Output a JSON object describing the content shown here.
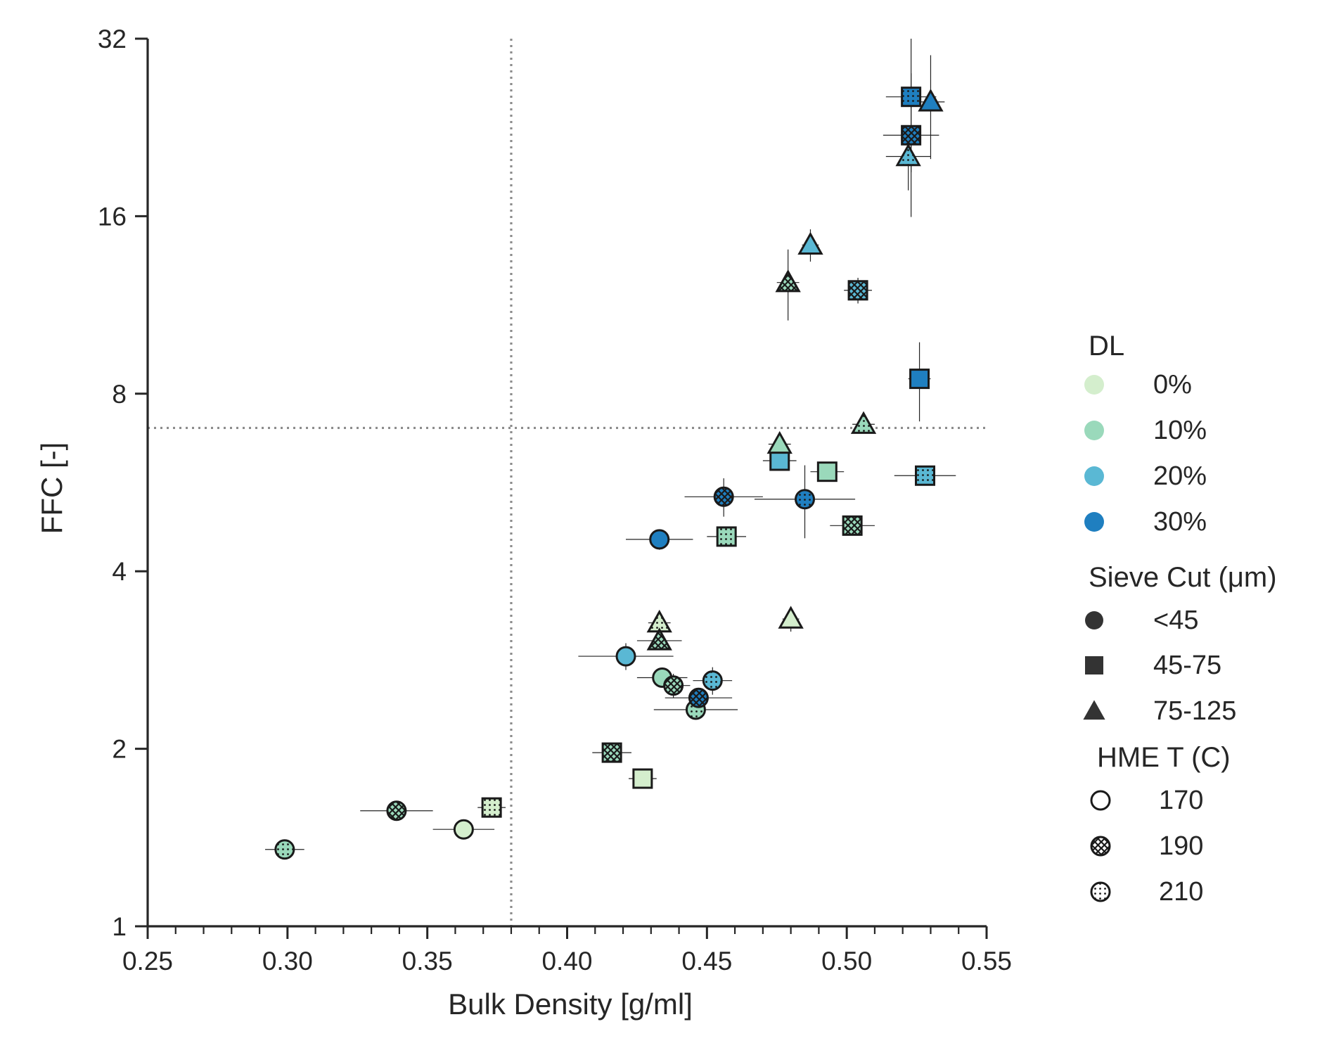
{
  "chart_data": {
    "type": "scatter",
    "xlabel": "Bulk Density [g/ml]",
    "ylabel": "FFC [-]",
    "xlim": [
      0.25,
      0.55
    ],
    "ylim": [
      1,
      32
    ],
    "y_scale": "log2",
    "x_ticks": [
      "0.25",
      "0.30",
      "0.35",
      "0.40",
      "0.45",
      "0.50",
      "0.55"
    ],
    "y_ticks": [
      {
        "value": 1,
        "label": "1"
      },
      {
        "value": 2,
        "label": "2"
      },
      {
        "value": 4,
        "label": "4"
      },
      {
        "value": 8,
        "label": "8"
      },
      {
        "value": 16,
        "label": "16"
      },
      {
        "value": 32,
        "label": "32"
      }
    ],
    "reference_lines": {
      "x": 0.38,
      "y": 7,
      "style": "dotted"
    },
    "grid": false,
    "legend": {
      "placement": "right",
      "groups": [
        {
          "title": "DL",
          "entries": [
            {
              "label": "0%",
              "color": "#d4eecd"
            },
            {
              "label": "10%",
              "color": "#9ad9bb"
            },
            {
              "label": "20%",
              "color": "#5ab8d4"
            },
            {
              "label": "30%",
              "color": "#1f7fc0"
            }
          ]
        },
        {
          "title": "Sieve Cut (μm)",
          "entries": [
            {
              "label": "<45",
              "marker": "circle"
            },
            {
              "label": "45-75",
              "marker": "square"
            },
            {
              "label": "75-125",
              "marker": "triangle"
            }
          ]
        },
        {
          "title": "HME T (C)",
          "entries": [
            {
              "label": "170",
              "hatch": "none"
            },
            {
              "label": "190",
              "hatch": "cross"
            },
            {
              "label": "210",
              "hatch": "dots"
            }
          ]
        }
      ]
    },
    "points": [
      {
        "x": 0.299,
        "y": 1.35,
        "dl": "10%",
        "sieve": "<45",
        "hme": "210",
        "xerr": 0.007,
        "yerr": 0.03
      },
      {
        "x": 0.339,
        "y": 1.57,
        "dl": "10%",
        "sieve": "<45",
        "hme": "190",
        "xerr": 0.013,
        "yerr": 0.04
      },
      {
        "x": 0.363,
        "y": 1.46,
        "dl": "0%",
        "sieve": "<45",
        "hme": "170",
        "xerr": 0.011,
        "yerr": 0.03
      },
      {
        "x": 0.373,
        "y": 1.59,
        "dl": "0%",
        "sieve": "45-75",
        "hme": "210",
        "xerr": 0.005,
        "yerr": 0.04
      },
      {
        "x": 0.416,
        "y": 1.97,
        "dl": "10%",
        "sieve": "45-75",
        "hme": "190",
        "xerr": 0.007,
        "yerr": 0.05
      },
      {
        "x": 0.427,
        "y": 1.78,
        "dl": "0%",
        "sieve": "45-75",
        "hme": "170",
        "xerr": 0.005,
        "yerr": 0.04
      },
      {
        "x": 0.421,
        "y": 2.87,
        "dl": "20%",
        "sieve": "<45",
        "hme": "170",
        "xerr": 0.017,
        "yerr": 0.15
      },
      {
        "x": 0.434,
        "y": 2.64,
        "dl": "10%",
        "sieve": "<45",
        "hme": "170",
        "xerr": 0.009,
        "yerr": 0.08
      },
      {
        "x": 0.438,
        "y": 2.56,
        "dl": "10%",
        "sieve": "<45",
        "hme": "190",
        "xerr": 0.006,
        "yerr": 0.12
      },
      {
        "x": 0.446,
        "y": 2.33,
        "dl": "10%",
        "sieve": "<45",
        "hme": "210",
        "xerr": 0.015,
        "yerr": 0.06
      },
      {
        "x": 0.447,
        "y": 2.44,
        "dl": "30%",
        "sieve": "<45",
        "hme": "190",
        "xerr": 0.012,
        "yerr": 0.07
      },
      {
        "x": 0.452,
        "y": 2.61,
        "dl": "20%",
        "sieve": "<45",
        "hme": "210",
        "xerr": 0.007,
        "yerr": 0.14
      },
      {
        "x": 0.433,
        "y": 4.53,
        "dl": "30%",
        "sieve": "<45",
        "hme": "170",
        "xerr": 0.012,
        "yerr": 0.18
      },
      {
        "x": 0.433,
        "y": 3.27,
        "dl": "0%",
        "sieve": "75-125",
        "hme": "210",
        "xerr": 0.004,
        "yerr": 0.1
      },
      {
        "x": 0.433,
        "y": 3.05,
        "dl": "10%",
        "sieve": "75-125",
        "hme": "190",
        "xerr": 0.008,
        "yerr": 0.1
      },
      {
        "x": 0.48,
        "y": 3.32,
        "dl": "0%",
        "sieve": "75-125",
        "hme": "170",
        "xerr": 0.003,
        "yerr": 0.16
      },
      {
        "x": 0.457,
        "y": 4.58,
        "dl": "10%",
        "sieve": "45-75",
        "hme": "210",
        "xerr": 0.007,
        "yerr": 0.1
      },
      {
        "x": 0.456,
        "y": 5.35,
        "dl": "30%",
        "sieve": "<45",
        "hme": "190",
        "xerr": 0.014,
        "yerr": 0.4
      },
      {
        "x": 0.485,
        "y": 5.3,
        "dl": "30%",
        "sieve": "<45",
        "hme": "210",
        "xerr": 0.018,
        "yerr": 0.75
      },
      {
        "x": 0.502,
        "y": 4.78,
        "dl": "10%",
        "sieve": "45-75",
        "hme": "190",
        "xerr": 0.008,
        "yerr": 0.14
      },
      {
        "x": 0.476,
        "y": 6.16,
        "dl": "20%",
        "sieve": "45-75",
        "hme": "170",
        "xerr": 0.006,
        "yerr": 0.15
      },
      {
        "x": 0.493,
        "y": 5.9,
        "dl": "10%",
        "sieve": "45-75",
        "hme": "170",
        "xerr": 0.006,
        "yerr": 0.12
      },
      {
        "x": 0.476,
        "y": 6.57,
        "dl": "10%",
        "sieve": "75-125",
        "hme": "170",
        "xerr": 0.004,
        "yerr": 0.14
      },
      {
        "x": 0.528,
        "y": 5.81,
        "dl": "20%",
        "sieve": "45-75",
        "hme": "210",
        "xerr": 0.011,
        "yerr": 0.1
      },
      {
        "x": 0.506,
        "y": 7.1,
        "dl": "10%",
        "sieve": "75-125",
        "hme": "210",
        "xerr": 0.004,
        "yerr": 0.1
      },
      {
        "x": 0.526,
        "y": 8.48,
        "dl": "30%",
        "sieve": "45-75",
        "hme": "170",
        "xerr": 0.004,
        "yerr": 1.3
      },
      {
        "x": 0.479,
        "y": 12.35,
        "dl": "10%",
        "sieve": "75-125",
        "hme": "190",
        "xerr": 0.004,
        "yerr": 1.7
      },
      {
        "x": 0.487,
        "y": 14.3,
        "dl": "20%",
        "sieve": "75-125",
        "hme": "170",
        "xerr": 0.003,
        "yerr": 0.9
      },
      {
        "x": 0.504,
        "y": 11.98,
        "dl": "20%",
        "sieve": "45-75",
        "hme": "190",
        "xerr": 0.005,
        "yerr": 0.6
      },
      {
        "x": 0.522,
        "y": 20.2,
        "dl": "20%",
        "sieve": "75-125",
        "hme": "210",
        "xerr": 0.008,
        "yerr": 2.5
      },
      {
        "x": 0.523,
        "y": 21.95,
        "dl": "30%",
        "sieve": "45-75",
        "hme": "190",
        "xerr": 0.01,
        "yerr": 6.0
      },
      {
        "x": 0.523,
        "y": 25.5,
        "dl": "30%",
        "sieve": "45-75",
        "hme": "210",
        "xerr": 0.009,
        "yerr": 6.5
      },
      {
        "x": 0.53,
        "y": 25.0,
        "dl": "30%",
        "sieve": "75-125",
        "hme": "170",
        "xerr": 0.005,
        "yerr": 5.0
      }
    ]
  }
}
